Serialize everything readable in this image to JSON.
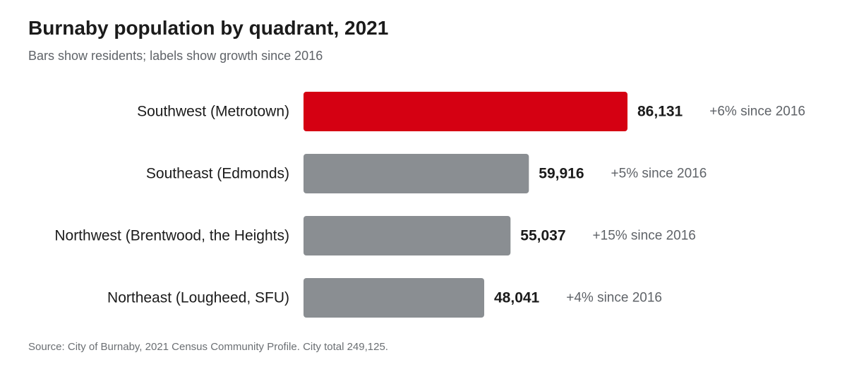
{
  "title": "Burnaby population by quadrant, 2021",
  "subtitle": "Bars show residents; labels show growth since 2016",
  "source": "Source: City of Burnaby, 2021 Census Community Profile. City total 249,125.",
  "colors": {
    "highlight": "#d50012",
    "default": "#8a8e92",
    "value_text": "#1b1b1b",
    "growth_text": "#5f6368",
    "category_text": "#1b1b1b"
  },
  "chart_data": {
    "type": "bar",
    "orientation": "horizontal",
    "categories": [
      "Southwest (Metrotown)",
      "Southeast (Edmonds)",
      "Northwest (Brentwood, the Heights)",
      "Northeast (Lougheed, SFU)"
    ],
    "values": [
      86131,
      59916,
      55037,
      48041
    ],
    "value_labels": [
      "86,131",
      "59,916",
      "55,037",
      "48,041"
    ],
    "growth_labels": [
      "+6% since 2016",
      "+5% since 2016",
      "+15% since 2016",
      "+4% since 2016"
    ],
    "highlight_index": 0,
    "title": "Burnaby population by quadrant, 2021",
    "xlabel": "",
    "ylabel": "",
    "xlim": [
      0,
      86131
    ],
    "grid": false,
    "legend": "none"
  }
}
